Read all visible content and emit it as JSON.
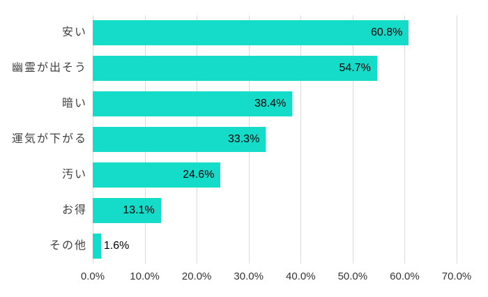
{
  "chart_data": {
    "type": "bar",
    "orientation": "horizontal",
    "title": "",
    "xlabel": "",
    "ylabel": "",
    "categories": [
      "安い",
      "幽霊が出そう",
      "暗い",
      "運気が下がる",
      "汚い",
      "お得",
      "その他"
    ],
    "values": [
      60.8,
      54.7,
      38.4,
      33.3,
      24.6,
      13.1,
      1.6
    ],
    "value_labels": [
      "60.8%",
      "54.7%",
      "38.4%",
      "33.3%",
      "24.6%",
      "13.1%",
      "1.6%"
    ],
    "x_tick_labels": [
      "0.0%",
      "10.0%",
      "20.0%",
      "30.0%",
      "40.0%",
      "50.0%",
      "60.0%",
      "70.0%"
    ],
    "xlim": [
      0,
      70
    ],
    "grid": true,
    "legend": false,
    "bar_color": "#15dbc9",
    "gridline_color": "#d9d9d9",
    "label_color": "#404040",
    "value_label_color": "#000000",
    "background_color": "#ffffff"
  }
}
